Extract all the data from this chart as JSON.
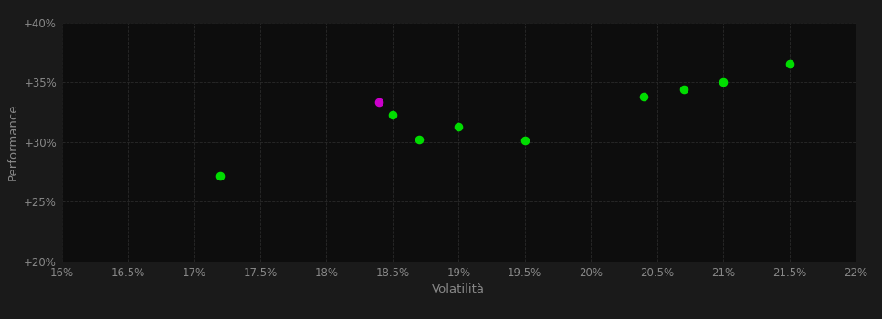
{
  "background_color": "#1a1a1a",
  "plot_bg_color": "#0d0d0d",
  "grid_color": "#2a2a2a",
  "xlabel": "Volatilità",
  "ylabel": "Performance",
  "xlim": [
    0.16,
    0.22
  ],
  "ylim": [
    0.2,
    0.4
  ],
  "xticks": [
    0.16,
    0.165,
    0.17,
    0.175,
    0.18,
    0.185,
    0.19,
    0.195,
    0.2,
    0.205,
    0.21,
    0.215,
    0.22
  ],
  "yticks": [
    0.2,
    0.25,
    0.3,
    0.35,
    0.4
  ],
  "green_points": [
    [
      0.172,
      0.272
    ],
    [
      0.185,
      0.323
    ],
    [
      0.187,
      0.302
    ],
    [
      0.19,
      0.313
    ],
    [
      0.195,
      0.301
    ],
    [
      0.204,
      0.338
    ],
    [
      0.207,
      0.344
    ],
    [
      0.21,
      0.35
    ],
    [
      0.215,
      0.365
    ]
  ],
  "magenta_points": [
    [
      0.184,
      0.333
    ]
  ],
  "green_color": "#00dd00",
  "magenta_color": "#cc00cc",
  "point_size": 35,
  "tick_label_color": "#888888",
  "axis_label_color": "#888888",
  "tick_fontsize": 8.5,
  "label_fontsize": 9.5
}
